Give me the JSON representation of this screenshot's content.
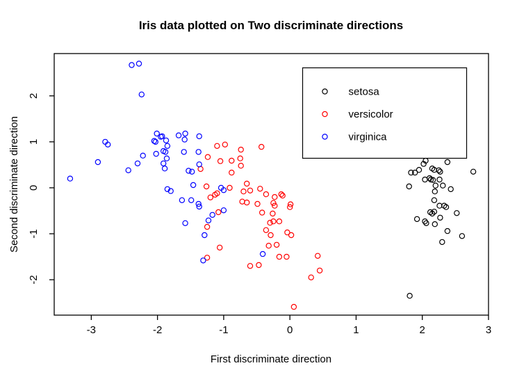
{
  "chart_data": {
    "type": "scatter",
    "title": "Iris data plotted on Two discriminate directions",
    "xlabel": "First discriminate direction",
    "ylabel": "Second discriminate direction",
    "x_ticks": [
      -3,
      -2,
      -1,
      0,
      1,
      2,
      3
    ],
    "y_ticks": [
      -2,
      -1,
      0,
      1,
      2
    ],
    "xlim": [
      -3.56,
      3.0
    ],
    "ylim": [
      -2.77,
      2.92
    ],
    "grid": false,
    "legend_position": "top-right",
    "marker": "open-circle",
    "colors": {
      "setosa": "#000000",
      "versicolor": "#ff0000",
      "virginica": "#0000ff"
    },
    "series": [
      {
        "name": "setosa",
        "color": "#000000",
        "points": [
          [
            2.05,
            0.59
          ],
          [
            2.38,
            0.56
          ],
          [
            1.83,
            0.33
          ],
          [
            1.89,
            0.33
          ],
          [
            1.95,
            0.39
          ],
          [
            2.02,
            0.52
          ],
          [
            2.15,
            0.42
          ],
          [
            2.18,
            0.39
          ],
          [
            2.25,
            0.38
          ],
          [
            2.27,
            0.35
          ],
          [
            2.77,
            0.35
          ],
          [
            2.04,
            0.18
          ],
          [
            2.11,
            0.21
          ],
          [
            2.13,
            0.18
          ],
          [
            2.16,
            0.17
          ],
          [
            2.26,
            0.18
          ],
          [
            1.8,
            0.03
          ],
          [
            2.2,
            0.05
          ],
          [
            2.31,
            0.05
          ],
          [
            2.43,
            -0.03
          ],
          [
            2.19,
            -0.08
          ],
          [
            2.18,
            -0.27
          ],
          [
            2.26,
            -0.39
          ],
          [
            2.33,
            -0.39
          ],
          [
            2.36,
            -0.42
          ],
          [
            2.52,
            -0.55
          ],
          [
            2.12,
            -0.53
          ],
          [
            2.15,
            -0.56
          ],
          [
            2.18,
            -0.52
          ],
          [
            1.92,
            -0.68
          ],
          [
            2.04,
            -0.73
          ],
          [
            2.06,
            -0.77
          ],
          [
            2.27,
            -0.65
          ],
          [
            2.19,
            -0.79
          ],
          [
            2.38,
            -0.94
          ],
          [
            2.6,
            -1.05
          ],
          [
            2.3,
            -1.18
          ],
          [
            1.81,
            -2.35
          ]
        ]
      },
      {
        "name": "versicolor",
        "color": "#ff0000",
        "points": [
          [
            -1.1,
            0.91
          ],
          [
            -0.98,
            0.94
          ],
          [
            -0.74,
            0.83
          ],
          [
            -0.43,
            0.89
          ],
          [
            -1.24,
            0.67
          ],
          [
            -1.05,
            0.58
          ],
          [
            -0.88,
            0.59
          ],
          [
            -0.75,
            0.64
          ],
          [
            -0.74,
            0.48
          ],
          [
            -1.35,
            0.41
          ],
          [
            -0.88,
            0.33
          ],
          [
            -1.26,
            0.03
          ],
          [
            -0.91,
            0.0
          ],
          [
            -0.65,
            0.09
          ],
          [
            -0.45,
            -0.02
          ],
          [
            -0.6,
            -0.06
          ],
          [
            -0.7,
            -0.08
          ],
          [
            -1.1,
            -0.12
          ],
          [
            -1.13,
            -0.15
          ],
          [
            -1.2,
            -0.21
          ],
          [
            -0.36,
            -0.14
          ],
          [
            -0.23,
            -0.2
          ],
          [
            -0.13,
            -0.14
          ],
          [
            -0.11,
            -0.17
          ],
          [
            -0.49,
            -0.35
          ],
          [
            -0.25,
            -0.33
          ],
          [
            0.01,
            -0.36
          ],
          [
            -0.72,
            -0.3
          ],
          [
            -0.65,
            -0.32
          ],
          [
            -1.08,
            -0.53
          ],
          [
            -0.42,
            -0.54
          ],
          [
            -0.26,
            -0.56
          ],
          [
            0.0,
            -0.42
          ],
          [
            -0.23,
            -0.39
          ],
          [
            -1.25,
            -0.85
          ],
          [
            -0.3,
            -0.76
          ],
          [
            -0.25,
            -0.73
          ],
          [
            -0.16,
            -0.73
          ],
          [
            -0.36,
            -0.92
          ],
          [
            -0.29,
            -1.03
          ],
          [
            -0.04,
            -0.97
          ],
          [
            0.02,
            -1.03
          ],
          [
            -0.32,
            -1.26
          ],
          [
            -0.2,
            -1.24
          ],
          [
            -1.06,
            -1.3
          ],
          [
            -0.16,
            -1.5
          ],
          [
            -0.05,
            -1.5
          ],
          [
            -1.25,
            -1.52
          ],
          [
            -0.6,
            -1.7
          ],
          [
            -0.47,
            -1.68
          ],
          [
            0.42,
            -1.48
          ],
          [
            0.45,
            -1.8
          ],
          [
            0.32,
            -1.95
          ],
          [
            0.06,
            -2.59
          ]
        ]
      },
      {
        "name": "virginica",
        "color": "#0000ff",
        "points": [
          [
            -2.39,
            2.67
          ],
          [
            -2.28,
            2.7
          ],
          [
            -2.24,
            2.03
          ],
          [
            -3.32,
            0.2
          ],
          [
            -2.9,
            0.56
          ],
          [
            -2.79,
            1.0
          ],
          [
            -2.75,
            0.94
          ],
          [
            -2.01,
            1.18
          ],
          [
            -1.95,
            1.11
          ],
          [
            -1.93,
            1.12
          ],
          [
            -2.05,
            1.02
          ],
          [
            -2.03,
            1.0
          ],
          [
            -2.02,
            0.74
          ],
          [
            -1.91,
            0.8
          ],
          [
            -2.22,
            0.7
          ],
          [
            -2.3,
            0.53
          ],
          [
            -2.44,
            0.38
          ],
          [
            -1.68,
            1.14
          ],
          [
            -1.58,
            1.18
          ],
          [
            -1.59,
            1.05
          ],
          [
            -1.37,
            1.12
          ],
          [
            -1.87,
            1.03
          ],
          [
            -1.85,
            0.91
          ],
          [
            -1.88,
            0.78
          ],
          [
            -1.6,
            0.78
          ],
          [
            -1.38,
            0.78
          ],
          [
            -1.86,
            0.64
          ],
          [
            -1.91,
            0.53
          ],
          [
            -1.89,
            0.42
          ],
          [
            -1.53,
            0.37
          ],
          [
            -1.48,
            0.35
          ],
          [
            -1.37,
            0.51
          ],
          [
            -1.46,
            0.06
          ],
          [
            -1.85,
            -0.03
          ],
          [
            -1.8,
            -0.07
          ],
          [
            -1.63,
            -0.27
          ],
          [
            -1.49,
            -0.27
          ],
          [
            -1.38,
            -0.35
          ],
          [
            -1.04,
            0.0
          ],
          [
            -1.0,
            -0.05
          ],
          [
            -1.37,
            -0.41
          ],
          [
            -1.0,
            -0.49
          ],
          [
            -1.17,
            -0.59
          ],
          [
            -1.23,
            -0.71
          ],
          [
            -1.58,
            -0.77
          ],
          [
            -1.29,
            -1.03
          ],
          [
            -1.31,
            -1.58
          ],
          [
            -0.41,
            -1.44
          ]
        ]
      }
    ],
    "legend": {
      "entries": [
        "setosa",
        "versicolor",
        "virginica"
      ]
    }
  }
}
